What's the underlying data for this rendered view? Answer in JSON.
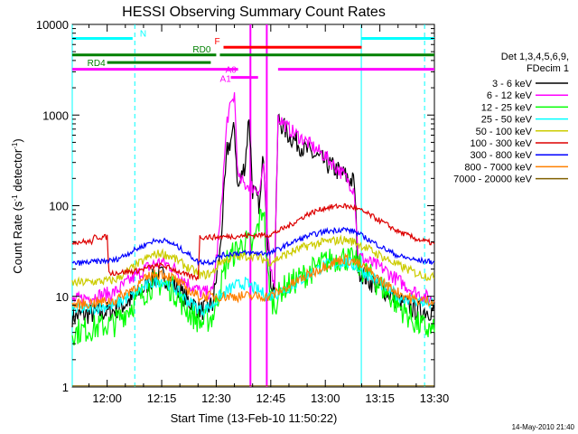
{
  "chart_data": {
    "type": "line",
    "title": "HESSI Observing Summary Count Rates",
    "xlabel": "Start Time (13-Feb-10 11:50:22)",
    "ylabel": "Count Rate (s-1 detector-1)",
    "ylabel_base": "Count Rate (s",
    "ylabel_sup1": "-1",
    "ylabel_mid": " detector",
    "ylabel_sup2": "-1",
    "ylabel_end": ")",
    "x_ticks": [
      "12:00",
      "12:15",
      "12:30",
      "12:45",
      "13:00",
      "13:15",
      "13:30"
    ],
    "x_tick_minutes": [
      0,
      15,
      30,
      45,
      60,
      75,
      90
    ],
    "xlim_minutes_after_1200": [
      -9.6,
      90
    ],
    "y_scale": "log",
    "ylim": [
      1,
      10000
    ],
    "y_ticks": [
      "1",
      "10",
      "100",
      "1000",
      "10000"
    ],
    "timestamp": "14-May-2010 21:40",
    "legend": {
      "header1": "Det 1,3,4,5,6,9,",
      "header2": "FDecim 1",
      "placement": "right",
      "entries": [
        {
          "label": "3 - 6 keV",
          "color": "#000000"
        },
        {
          "label": "6 - 12 keV",
          "color": "#ff00ff"
        },
        {
          "label": "12 - 25 keV",
          "color": "#00ff00"
        },
        {
          "label": "25 - 50 keV",
          "color": "#00ffff"
        },
        {
          "label": "50 - 100 keV",
          "color": "#cccc00"
        },
        {
          "label": "100 - 300 keV",
          "color": "#dd0000"
        },
        {
          "label": "300 - 800 keV",
          "color": "#0000ff"
        },
        {
          "label": "800 - 7000 keV",
          "color": "#ff8000"
        },
        {
          "label": "7000 - 20000 keV",
          "color": "#806000"
        }
      ]
    },
    "flag_labels": [
      {
        "text": "N",
        "color": "#00ffff"
      },
      {
        "text": "RD0",
        "color": "#008000"
      },
      {
        "text": "RD4",
        "color": "#008000"
      },
      {
        "text": "F",
        "color": "#ff0000"
      },
      {
        "text": "A0",
        "color": "#ff00ff"
      },
      {
        "text": "A1",
        "color": "#ff00ff"
      }
    ],
    "series": [
      {
        "name": "3 - 6 keV",
        "color": "#000000",
        "points": [
          [
            -9.6,
            6
          ],
          [
            2,
            7
          ],
          [
            8,
            10
          ],
          [
            12,
            15
          ],
          [
            15,
            17
          ],
          [
            18,
            14
          ],
          [
            22,
            9
          ],
          [
            26,
            7
          ],
          [
            29,
            8
          ],
          [
            31,
            30
          ],
          [
            33,
            400
          ],
          [
            35,
            700
          ],
          [
            36,
            150
          ],
          [
            38,
            300
          ],
          [
            39,
            1000
          ],
          [
            40,
            150
          ],
          [
            42,
            100
          ],
          [
            43,
            400
          ],
          [
            44,
            60
          ],
          [
            45,
            15
          ],
          [
            46,
            12
          ],
          [
            47,
            900
          ],
          [
            50,
            600
          ],
          [
            55,
            400
          ],
          [
            60,
            300
          ],
          [
            65,
            220
          ],
          [
            68,
            180
          ],
          [
            69,
            20
          ],
          [
            72,
            15
          ],
          [
            76,
            12
          ],
          [
            80,
            9
          ],
          [
            85,
            7
          ],
          [
            90,
            7
          ]
        ]
      },
      {
        "name": "6 - 12 keV",
        "color": "#ff00ff",
        "points": [
          [
            -9.6,
            9
          ],
          [
            2,
            11
          ],
          [
            8,
            17
          ],
          [
            12,
            22
          ],
          [
            15,
            24
          ],
          [
            18,
            21
          ],
          [
            22,
            14
          ],
          [
            26,
            11
          ],
          [
            29,
            11
          ],
          [
            31,
            60
          ],
          [
            33,
            900
          ],
          [
            35,
            1700
          ],
          [
            36,
            200
          ],
          [
            38,
            170
          ],
          [
            39,
            170
          ],
          [
            40,
            160
          ],
          [
            42,
            150
          ],
          [
            43,
            300
          ],
          [
            44,
            50
          ],
          [
            45,
            20
          ],
          [
            46,
            15
          ],
          [
            47,
            950
          ],
          [
            50,
            700
          ],
          [
            55,
            500
          ],
          [
            60,
            350
          ],
          [
            65,
            220
          ],
          [
            68,
            150
          ],
          [
            69,
            28
          ],
          [
            72,
            24
          ],
          [
            76,
            20
          ],
          [
            80,
            15
          ],
          [
            85,
            11
          ],
          [
            90,
            9
          ]
        ]
      },
      {
        "name": "12 - 25 keV",
        "color": "#00ff00",
        "points": [
          [
            -9.6,
            4
          ],
          [
            2,
            5
          ],
          [
            8,
            9
          ],
          [
            12,
            13
          ],
          [
            15,
            14
          ],
          [
            18,
            12
          ],
          [
            22,
            7
          ],
          [
            26,
            5
          ],
          [
            29,
            6
          ],
          [
            31,
            12
          ],
          [
            33,
            25
          ],
          [
            35,
            30
          ],
          [
            38,
            40
          ],
          [
            40,
            35
          ],
          [
            43,
            100
          ],
          [
            44,
            20
          ],
          [
            45,
            10
          ],
          [
            46,
            8
          ],
          [
            48,
            12
          ],
          [
            52,
            15
          ],
          [
            56,
            19
          ],
          [
            60,
            24
          ],
          [
            65,
            27
          ],
          [
            68,
            24
          ],
          [
            72,
            17
          ],
          [
            76,
            12
          ],
          [
            80,
            8
          ],
          [
            85,
            5
          ],
          [
            90,
            4
          ]
        ]
      },
      {
        "name": "25 - 50 keV",
        "color": "#00ffff",
        "points": [
          [
            -9.6,
            7
          ],
          [
            2,
            8
          ],
          [
            8,
            11
          ],
          [
            12,
            14
          ],
          [
            15,
            15
          ],
          [
            18,
            13
          ],
          [
            22,
            9
          ],
          [
            26,
            7
          ],
          [
            29,
            8
          ],
          [
            31,
            10
          ],
          [
            35,
            13
          ],
          [
            38,
            14
          ],
          [
            41,
            12
          ],
          [
            44,
            10
          ],
          [
            47,
            11
          ],
          [
            52,
            14
          ],
          [
            56,
            18
          ],
          [
            60,
            22
          ],
          [
            65,
            24
          ],
          [
            68,
            22
          ],
          [
            72,
            17
          ],
          [
            76,
            13
          ],
          [
            80,
            10
          ],
          [
            85,
            9
          ],
          [
            90,
            8
          ]
        ]
      },
      {
        "name": "50 - 100 keV",
        "color": "#cccc00",
        "points": [
          [
            -9.6,
            14
          ],
          [
            2,
            15
          ],
          [
            8,
            22
          ],
          [
            12,
            28
          ],
          [
            15,
            30
          ],
          [
            18,
            27
          ],
          [
            22,
            21
          ],
          [
            26,
            17
          ],
          [
            29,
            18
          ],
          [
            31,
            24
          ],
          [
            35,
            27
          ],
          [
            40,
            28
          ],
          [
            45,
            24
          ],
          [
            50,
            30
          ],
          [
            55,
            36
          ],
          [
            60,
            40
          ],
          [
            65,
            42
          ],
          [
            68,
            40
          ],
          [
            72,
            33
          ],
          [
            76,
            27
          ],
          [
            80,
            22
          ],
          [
            85,
            18
          ],
          [
            90,
            16
          ]
        ]
      },
      {
        "name": "100 - 300 keV",
        "color": "#dd0000",
        "points": [
          [
            -9.6,
            40
          ],
          [
            -4,
            40
          ],
          [
            -3.5,
            45
          ],
          [
            0,
            45
          ],
          [
            0.5,
            18
          ],
          [
            8,
            19
          ],
          [
            12,
            21
          ],
          [
            15,
            22
          ],
          [
            18,
            20
          ],
          [
            22,
            17
          ],
          [
            25,
            16
          ],
          [
            25.5,
            45
          ],
          [
            30,
            45
          ],
          [
            35,
            46
          ],
          [
            40,
            47
          ],
          [
            45,
            48
          ],
          [
            50,
            60
          ],
          [
            55,
            80
          ],
          [
            60,
            95
          ],
          [
            65,
            100
          ],
          [
            68,
            95
          ],
          [
            72,
            80
          ],
          [
            76,
            65
          ],
          [
            80,
            52
          ],
          [
            85,
            43
          ],
          [
            90,
            38
          ]
        ]
      },
      {
        "name": "300 - 800 keV",
        "color": "#0000ff",
        "points": [
          [
            -9.6,
            23
          ],
          [
            2,
            25
          ],
          [
            8,
            33
          ],
          [
            12,
            40
          ],
          [
            15,
            42
          ],
          [
            18,
            38
          ],
          [
            22,
            30
          ],
          [
            25,
            24
          ],
          [
            29,
            24
          ],
          [
            31,
            28
          ],
          [
            35,
            30
          ],
          [
            40,
            30
          ],
          [
            45,
            30
          ],
          [
            50,
            38
          ],
          [
            55,
            46
          ],
          [
            60,
            52
          ],
          [
            65,
            55
          ],
          [
            68,
            52
          ],
          [
            72,
            42
          ],
          [
            76,
            34
          ],
          [
            80,
            28
          ],
          [
            85,
            25
          ],
          [
            90,
            24
          ]
        ]
      },
      {
        "name": "800 - 7000 keV",
        "color": "#ff8000",
        "points": [
          [
            -9.6,
            8
          ],
          [
            2,
            9
          ],
          [
            8,
            13
          ],
          [
            12,
            17
          ],
          [
            15,
            18
          ],
          [
            18,
            16
          ],
          [
            22,
            12
          ],
          [
            25,
            10
          ],
          [
            29,
            10
          ],
          [
            31,
            10
          ],
          [
            35,
            10
          ],
          [
            40,
            10
          ],
          [
            45,
            10
          ],
          [
            50,
            13
          ],
          [
            55,
            17
          ],
          [
            60,
            22
          ],
          [
            65,
            26
          ],
          [
            68,
            24
          ],
          [
            72,
            19
          ],
          [
            76,
            14
          ],
          [
            80,
            11
          ],
          [
            85,
            9
          ],
          [
            90,
            9
          ]
        ]
      },
      {
        "name": "7000 - 20000 keV",
        "color": "#806000",
        "points": [
          [
            -9.6,
            1.03
          ],
          [
            90,
            1.03
          ]
        ]
      }
    ],
    "flags": [
      {
        "name": "N",
        "color": "#00ffff",
        "segments": [
          [
            -9.6,
            7
          ],
          [
            70,
            90
          ]
        ],
        "level": 7000
      },
      {
        "name": "F",
        "color": "#ff0000",
        "segments": [
          [
            32,
            70
          ]
        ],
        "level": 5600
      },
      {
        "name": "RD0",
        "color": "#008000",
        "segments": [
          [
            -9.6,
            30
          ],
          [
            31,
            90
          ]
        ],
        "level": 4600
      },
      {
        "name": "RD4",
        "color": "#008000",
        "segments": [
          [
            0,
            28.5
          ]
        ],
        "level": 3800
      },
      {
        "name": "A0",
        "color": "#ff00ff",
        "segments": [
          [
            -9.6,
            36
          ],
          [
            47,
            90
          ]
        ],
        "level": 3200
      },
      {
        "name": "A1",
        "color": "#ff00ff",
        "segments": [
          [
            34,
            41.5
          ]
        ],
        "level": 2600
      }
    ],
    "vertical_markers": [
      {
        "color": "#00ffff",
        "style": "solid",
        "minute": -9.6
      },
      {
        "color": "#00ffff",
        "style": "dashed",
        "minute": 7.6
      },
      {
        "color": "#00ffff",
        "style": "solid",
        "minute": 69.9
      },
      {
        "color": "#00ffff",
        "style": "dashed",
        "minute": 87.3
      },
      {
        "color": "#ff00ff",
        "style": "solid",
        "minute": 39.4
      },
      {
        "color": "#ff00ff",
        "style": "solid",
        "minute": 43.9
      }
    ]
  }
}
